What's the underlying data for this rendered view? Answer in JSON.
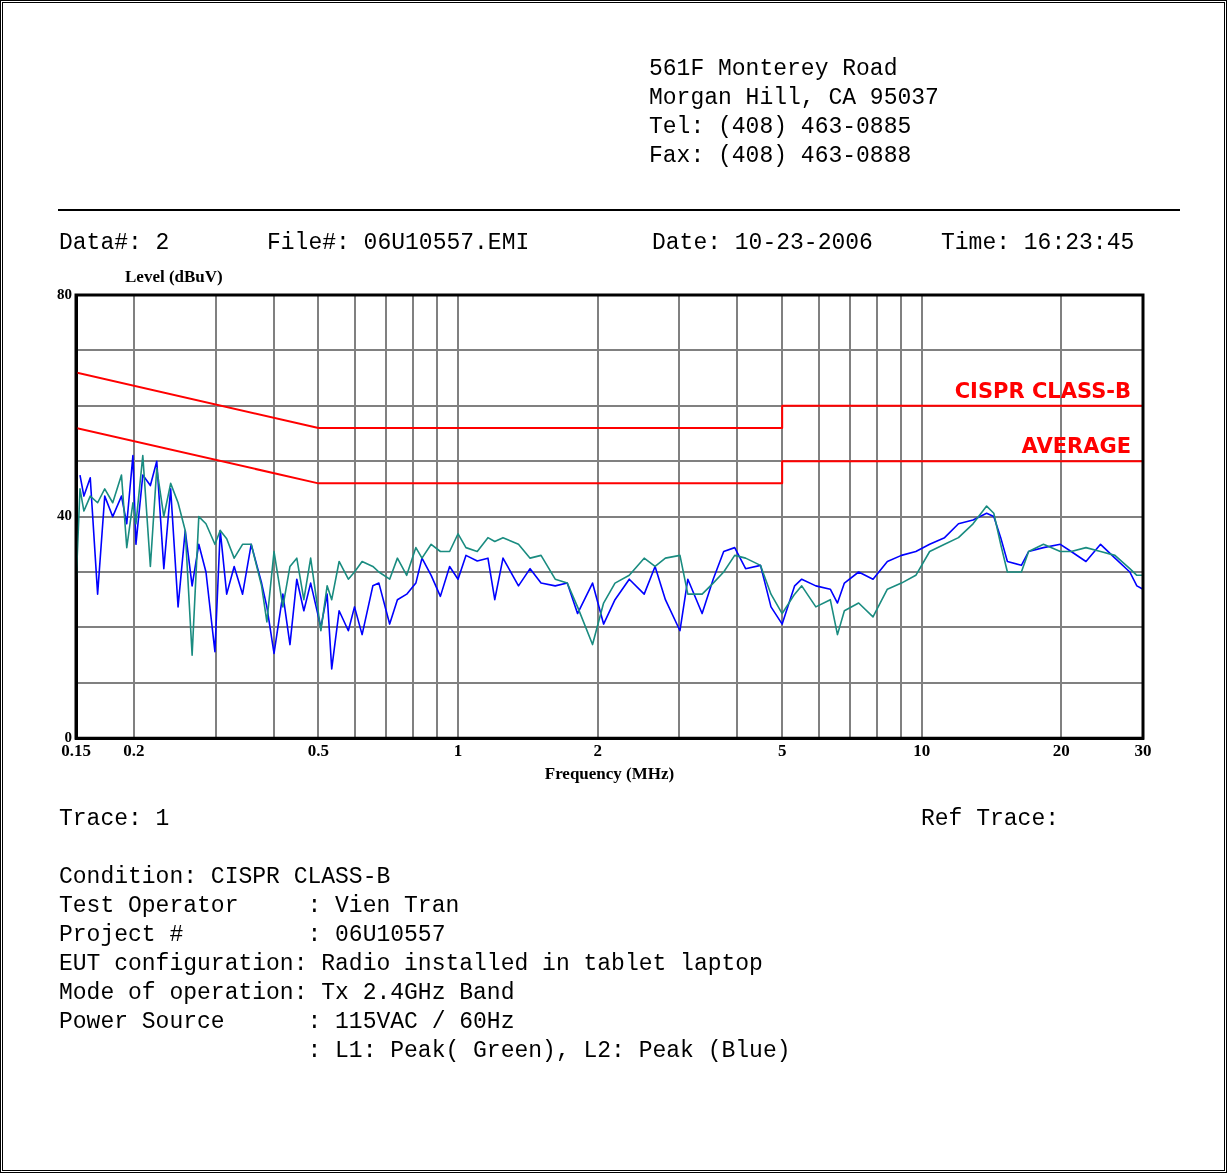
{
  "chart_data": {
    "type": "line",
    "xlabel": "Frequency (MHz)",
    "ylabel": "Level (dBuV)",
    "log": "x",
    "grid": true,
    "legend": false,
    "marker": "none",
    "line_style": "solid",
    "xlim": [
      0.15,
      30
    ],
    "ylim": [
      0,
      80
    ],
    "xticks": [
      0.15,
      0.2,
      {
        "value": 0.3,
        "label": null
      },
      {
        "value": 0.4,
        "label": null
      },
      0.5,
      {
        "value": 0.6,
        "label": null
      },
      {
        "value": 0.7,
        "label": null
      },
      {
        "value": 0.8,
        "label": null
      },
      {
        "value": 0.9,
        "label": null
      },
      1,
      2,
      {
        "value": 3,
        "label": null
      },
      {
        "value": 4,
        "label": null
      },
      5,
      {
        "value": 6,
        "label": null
      },
      {
        "value": 7,
        "label": null
      },
      {
        "value": 8,
        "label": null
      },
      {
        "value": 9,
        "label": null
      },
      10,
      20,
      30
    ],
    "yticks": [
      0,
      {
        "value": 10,
        "label": null
      },
      {
        "value": 20,
        "label": null
      },
      {
        "value": 30,
        "label": null
      },
      40,
      {
        "value": 50,
        "label": null
      },
      {
        "value": 60,
        "label": null
      },
      {
        "value": 70,
        "label": null
      },
      80
    ],
    "x": [
      0.15,
      0.153,
      0.156,
      0.161,
      0.167,
      0.173,
      0.18,
      0.188,
      0.193,
      0.199,
      0.202,
      0.209,
      0.217,
      0.224,
      0.232,
      0.24,
      0.249,
      0.258,
      0.267,
      0.276,
      0.286,
      0.299,
      0.307,
      0.317,
      0.329,
      0.343,
      0.358,
      0.377,
      0.387,
      0.401,
      0.419,
      0.434,
      0.449,
      0.465,
      0.481,
      0.506,
      0.522,
      0.534,
      0.554,
      0.58,
      0.598,
      0.621,
      0.655,
      0.675,
      0.712,
      0.74,
      0.775,
      0.811,
      0.836,
      0.875,
      0.916,
      0.959,
      1.0,
      1.04,
      1.1,
      1.16,
      1.2,
      1.25,
      1.35,
      1.43,
      1.51,
      1.62,
      1.72,
      1.81,
      1.95,
      2.06,
      2.18,
      2.34,
      2.52,
      2.66,
      2.8,
      3.01,
      3.13,
      3.36,
      3.55,
      3.74,
      3.95,
      4.17,
      4.49,
      4.73,
      5.0,
      5.32,
      5.51,
      5.91,
      6.35,
      6.58,
      6.81,
      7.31,
      7.85,
      8.43,
      9.04,
      9.71,
      10.4,
      11.2,
      12.0,
      12.9,
      13.8,
      14.3,
      14.8,
      15.3,
      16.4,
      17.0,
      18.3,
      19.9,
      21.0,
      22.6,
      24.3,
      26.1,
      28.1,
      29.1,
      30
    ],
    "series": [
      {
        "color": "#1a8c80",
        "values": [
          27.5,
          45,
          41,
          43.7,
          42.5,
          45,
          42.5,
          47.5,
          34.4,
          42.5,
          38.7,
          51,
          31,
          48.7,
          40,
          46,
          42.5,
          37.5,
          15,
          40,
          38.7,
          35,
          37.5,
          36,
          32.5,
          35,
          35,
          27.5,
          21,
          33.7,
          23.7,
          31,
          32.5,
          25,
          32.5,
          19.4,
          27.5,
          25,
          31.9,
          28.7,
          30,
          31.9,
          31,
          30,
          28.7,
          32.5,
          29.4,
          34.4,
          32.5,
          35,
          33.7,
          33.7,
          36.9,
          34.4,
          33.7,
          36.2,
          35.5,
          36.2,
          35,
          32.5,
          33,
          28.7,
          28,
          23.7,
          16.9,
          24.4,
          28,
          29.4,
          32.5,
          31,
          32.5,
          33,
          26,
          26,
          28,
          30,
          33,
          32.5,
          31.2,
          26,
          22.5,
          26,
          27.5,
          23.7,
          25,
          18.7,
          23,
          24.4,
          21.9,
          26.9,
          28,
          29.4,
          33.7,
          35,
          36.2,
          38.7,
          41.9,
          40.6,
          35,
          30,
          30,
          33.7,
          35,
          33.7,
          33.7,
          34.4,
          33.7,
          33,
          30.6,
          29.4,
          29.4
        ]
      },
      {
        "color": "#0000ff",
        "values": [
          null,
          47.5,
          43.7,
          47,
          26,
          43.7,
          40,
          43.7,
          38.7,
          51,
          35,
          47.5,
          45.6,
          50,
          30.6,
          45,
          23.7,
          37.5,
          27.5,
          35,
          30,
          15.6,
          37.5,
          26,
          31,
          26,
          35,
          28,
          23.7,
          15.3,
          26,
          16.9,
          28.7,
          23,
          28,
          20,
          26,
          12.5,
          23,
          19.4,
          23.7,
          18.7,
          27.5,
          28,
          20.6,
          25,
          26,
          28,
          32.5,
          29.4,
          25.6,
          31,
          28.7,
          33,
          32,
          32.5,
          25,
          32.5,
          27.5,
          30.6,
          28,
          27.5,
          28,
          22.5,
          28,
          20.6,
          25,
          28.7,
          26,
          31,
          25,
          19.4,
          28.7,
          22.5,
          28.7,
          33.7,
          34.4,
          30.6,
          31.2,
          23.7,
          20.6,
          27.5,
          28.7,
          27.5,
          26.9,
          24.4,
          28,
          30,
          28.7,
          31.9,
          33,
          33.7,
          35,
          36.2,
          38.7,
          39.4,
          40.6,
          40,
          36.2,
          31.9,
          31.2,
          33.7,
          34.4,
          35,
          33.7,
          31.9,
          35,
          32.5,
          30,
          27.5,
          26.9
        ]
      },
      {
        "name": "CISPR CLASS-B",
        "color": "#ff0000",
        "x": [
          0.15,
          0.5,
          5,
          5,
          30
        ],
        "values": [
          66,
          56,
          56,
          60,
          60
        ]
      },
      {
        "name": "AVERAGE",
        "color": "#ff0000",
        "x": [
          0.15,
          0.5,
          5,
          5,
          30
        ],
        "values": [
          56,
          46,
          46,
          50,
          50
        ]
      }
    ],
    "annotations": [
      "561F Monterey Road",
      "Morgan Hill, CA 95037",
      "Tel: (408) 463-0885",
      "Fax: (408) 463-0888",
      "Data#: 2",
      "File#: 06U10557.EMI",
      "Date: 10-23-2006",
      "Time: 16:23:45",
      "Trace: 1",
      "Ref Trace:",
      "Condition: CISPR CLASS-B",
      "Test Operator     : Vien Tran",
      "Project #         : 06U10557",
      "EUT configuration: Radio installed in tablet laptop",
      "Mode of operation: Tx 2.4GHz Band",
      "Power Source      : 115VAC / 60Hz",
      "                  : L1: Peak( Green), L2: Peak (Blue)"
    ]
  }
}
